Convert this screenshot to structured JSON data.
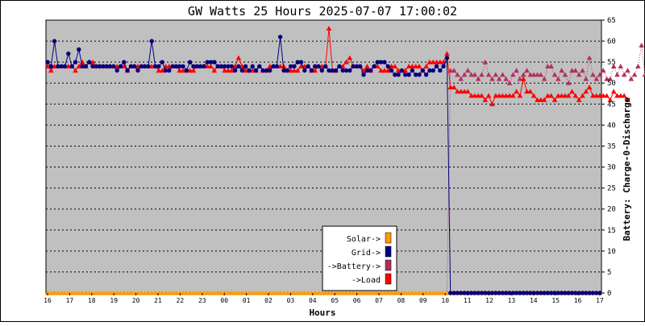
{
  "chart_data": {
    "type": "line",
    "title": "GW Watts 25 Hours 2025-07-07 17:00:02",
    "xlabel": "Hours",
    "ylabel": "Battery: Charge-0-Discharge",
    "ylim": [
      0,
      65
    ],
    "y_ticks": [
      "0",
      "5",
      "10",
      "15",
      "20",
      "25",
      "30",
      "35",
      "40",
      "45",
      "50",
      "55",
      "60",
      "65"
    ],
    "x_ticks": [
      "16",
      "17",
      "18",
      "19",
      "20",
      "21",
      "22",
      "23",
      "00",
      "01",
      "02",
      "03",
      "04",
      "05",
      "06",
      "07",
      "08",
      "09",
      "10",
      "11",
      "12",
      "13",
      "14",
      "15",
      "16",
      "17"
    ],
    "grid": true,
    "plot_background": "#c0c0c0",
    "legend_position": "bottom-center",
    "legend": [
      {
        "label": "Solar->",
        "color": "#ff9900"
      },
      {
        "label": "Grid->",
        "color": "#000080"
      },
      {
        "label": "->Battery->",
        "color": "#b03060"
      },
      {
        "label": "->Load",
        "color": "#ff0000"
      }
    ],
    "series": [
      {
        "name": "Solar->",
        "color": "#ff9900",
        "marker": "triangle",
        "values": [
          0,
          0,
          0,
          0,
          0,
          0,
          0,
          0,
          0,
          0,
          0,
          0,
          0,
          0,
          0,
          0,
          0,
          0,
          0,
          0,
          0,
          0,
          0,
          0,
          0,
          0,
          0,
          0,
          0,
          0,
          0,
          0,
          0,
          0,
          0,
          0,
          0,
          0,
          0,
          0,
          0,
          0,
          0,
          0,
          0,
          0,
          0,
          0,
          0,
          0,
          0,
          0,
          0,
          0,
          0,
          0,
          0,
          0,
          0,
          0,
          0,
          0,
          0,
          0,
          0,
          0,
          0,
          0,
          0,
          0,
          0,
          0,
          0,
          0,
          0,
          0,
          0,
          0,
          0,
          0,
          0,
          0,
          0,
          0,
          0,
          0,
          0,
          0,
          0,
          0,
          0,
          0,
          0,
          0,
          0,
          0,
          0,
          0,
          0,
          0,
          0,
          0,
          0,
          0,
          0,
          0,
          0,
          0,
          0,
          0,
          0,
          0,
          0,
          0,
          0,
          0,
          0,
          0,
          0,
          0,
          0,
          0,
          0,
          0,
          0,
          0,
          0,
          0,
          0,
          0,
          0,
          0,
          0,
          0,
          0,
          0,
          0,
          0,
          0,
          0,
          0,
          0,
          0,
          0,
          0,
          0,
          0,
          0,
          0,
          0,
          0,
          0,
          0,
          0,
          0,
          0,
          0,
          0,
          0,
          0
        ]
      },
      {
        "name": "Grid->",
        "color": "#000080",
        "marker": "circle",
        "values": [
          55,
          54,
          60,
          54,
          54,
          54,
          57,
          54,
          55,
          58,
          54,
          54,
          55,
          54,
          54,
          54,
          54,
          54,
          54,
          54,
          53,
          54,
          55,
          53,
          54,
          54,
          53,
          54,
          54,
          54,
          60,
          54,
          54,
          55,
          53,
          53,
          54,
          54,
          54,
          54,
          53,
          55,
          54,
          54,
          54,
          54,
          55,
          55,
          55,
          54,
          54,
          54,
          54,
          54,
          53,
          54,
          53,
          54,
          53,
          54,
          53,
          54,
          53,
          53,
          53,
          54,
          54,
          61,
          53,
          53,
          54,
          54,
          55,
          55,
          53,
          54,
          53,
          54,
          54,
          53,
          54,
          53,
          53,
          53,
          54,
          53,
          53,
          53,
          54,
          54,
          54,
          52,
          53,
          53,
          54,
          55,
          55,
          55,
          54,
          53,
          52,
          52,
          53,
          52,
          52,
          53,
          52,
          52,
          53,
          52,
          53,
          53,
          54,
          53,
          54,
          56,
          0,
          0,
          0,
          0,
          0,
          0,
          0,
          0,
          0,
          0,
          0,
          0,
          0,
          0,
          0,
          0,
          0,
          0,
          0,
          0,
          0,
          0,
          0,
          0,
          0,
          0,
          0,
          0,
          0,
          0,
          0,
          0,
          0,
          0,
          0,
          0,
          0,
          0,
          0,
          0,
          0,
          0,
          0,
          0
        ]
      },
      {
        "name": "->Battery->",
        "color": "#b03060",
        "marker": "triangle",
        "values": [
          0,
          0,
          0,
          0,
          0,
          0,
          0,
          0,
          0,
          0,
          0,
          0,
          0,
          0,
          0,
          0,
          0,
          0,
          0,
          0,
          0,
          0,
          0,
          0,
          0,
          0,
          0,
          0,
          0,
          0,
          0,
          0,
          0,
          0,
          0,
          0,
          0,
          0,
          0,
          0,
          0,
          0,
          0,
          0,
          0,
          0,
          0,
          0,
          0,
          0,
          0,
          0,
          0,
          0,
          0,
          0,
          0,
          0,
          0,
          0,
          0,
          0,
          0,
          0,
          0,
          0,
          0,
          0,
          0,
          0,
          0,
          0,
          0,
          0,
          0,
          0,
          0,
          0,
          0,
          0,
          0,
          0,
          0,
          0,
          0,
          0,
          0,
          0,
          0,
          0,
          0,
          0,
          0,
          0,
          0,
          0,
          0,
          0,
          0,
          0,
          0,
          0,
          0,
          0,
          0,
          0,
          0,
          0,
          0,
          0,
          0,
          0,
          0,
          0,
          0,
          0,
          53,
          53,
          52,
          51,
          52,
          53,
          52,
          52,
          51,
          52,
          55,
          52,
          51,
          52,
          51,
          52,
          51,
          50,
          52,
          53,
          51,
          52,
          53,
          52,
          52,
          52,
          52,
          51,
          54,
          54,
          52,
          51,
          53,
          52,
          50,
          53,
          53,
          52,
          53,
          51,
          56,
          52,
          51,
          52,
          53,
          51,
          51,
          54,
          52,
          54,
          52,
          53,
          51,
          52,
          54,
          59,
          52,
          51,
          52,
          53,
          52,
          52,
          53,
          54,
          56,
          52,
          51,
          59,
          52,
          53
        ]
      },
      {
        "name": "->Load",
        "color": "#ff0000",
        "marker": "triangle",
        "values": [
          54,
          53,
          54,
          54,
          54,
          54,
          54,
          54,
          53,
          54,
          55,
          54,
          55,
          55,
          54,
          54,
          54,
          54,
          54,
          54,
          54,
          54,
          54,
          53,
          54,
          54,
          54,
          54,
          54,
          54,
          54,
          54,
          53,
          53,
          54,
          54,
          54,
          54,
          53,
          53,
          53,
          53,
          53,
          54,
          54,
          54,
          54,
          54,
          53,
          54,
          54,
          53,
          53,
          53,
          54,
          56,
          54,
          53,
          53,
          53,
          53,
          54,
          53,
          53,
          54,
          54,
          54,
          54,
          54,
          53,
          53,
          53,
          53,
          54,
          54,
          54,
          53,
          53,
          54,
          54,
          54,
          63,
          53,
          53,
          54,
          54,
          55,
          56,
          54,
          54,
          54,
          53,
          54,
          53,
          54,
          54,
          53,
          53,
          53,
          54,
          54,
          53,
          53,
          53,
          54,
          54,
          54,
          54,
          53,
          54,
          55,
          55,
          55,
          55,
          55,
          57,
          49,
          49,
          48,
          48,
          48,
          48,
          47,
          47,
          47,
          47,
          46,
          47,
          45,
          47,
          47,
          47,
          47,
          47,
          47,
          48,
          47,
          51,
          48,
          48,
          47,
          46,
          46,
          46,
          47,
          47,
          46,
          47,
          47,
          47,
          47,
          48,
          47,
          46,
          47,
          48,
          49,
          47,
          47,
          47,
          47,
          47,
          46,
          48,
          47,
          47,
          47,
          46
        ]
      }
    ]
  }
}
